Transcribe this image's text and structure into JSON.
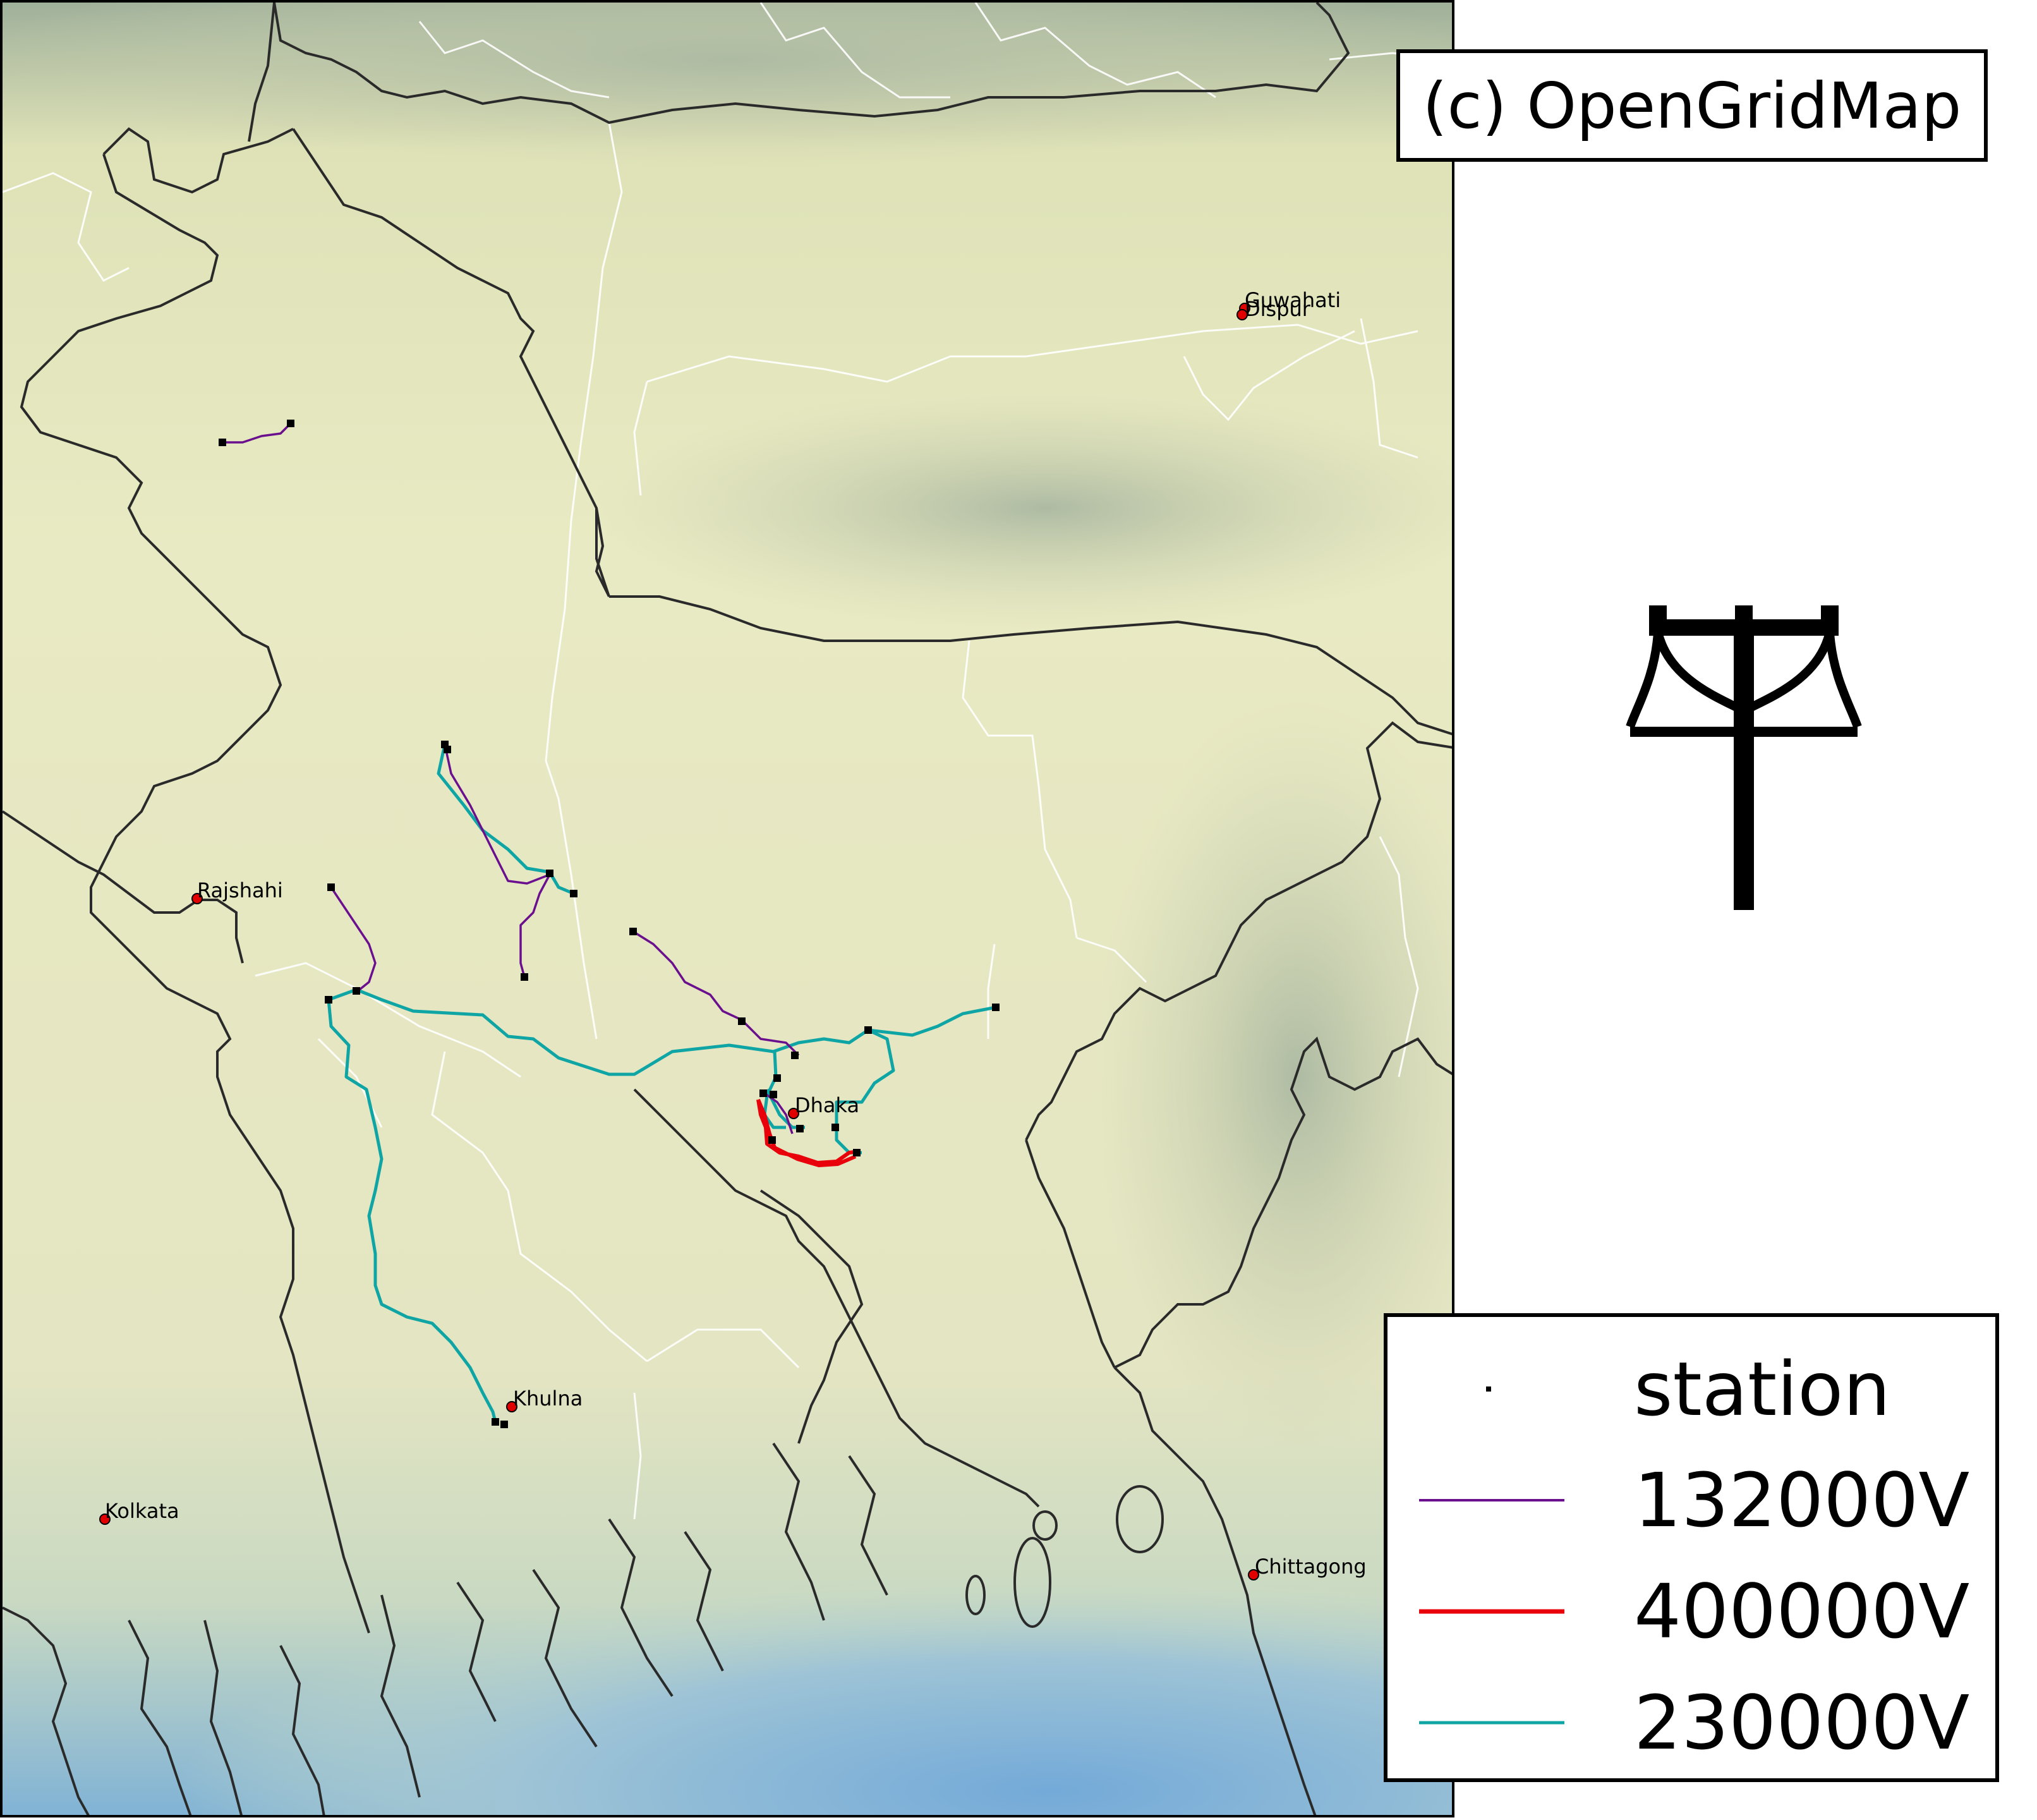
{
  "credit": "(c) OpenGridMap",
  "icons": {
    "logo": "power-pylon-icon"
  },
  "colors": {
    "ocean": "#7fb0d6",
    "land": "#e8e8c2",
    "hills": "#b9c2a0",
    "border": "#2a2a2a",
    "admin_border": "#ffffff",
    "station": "#000000",
    "city_marker": "#e00000"
  },
  "legend": {
    "items": [
      {
        "label": "station",
        "kind": "point",
        "color": "#000000"
      },
      {
        "label": "132000V",
        "kind": "line",
        "color": "#6a0f8e"
      },
      {
        "label": "400000V",
        "kind": "line",
        "color": "#e8000b"
      },
      {
        "label": "230000V",
        "kind": "line",
        "color": "#10a5a5"
      }
    ]
  },
  "cities": [
    {
      "name": "Guwahati"
    },
    {
      "name": "Dispur"
    },
    {
      "name": "Rajshahi"
    },
    {
      "name": "Dhaka"
    },
    {
      "name": "Khulna"
    },
    {
      "name": "Kolkata"
    },
    {
      "name": "Chittagong"
    }
  ]
}
